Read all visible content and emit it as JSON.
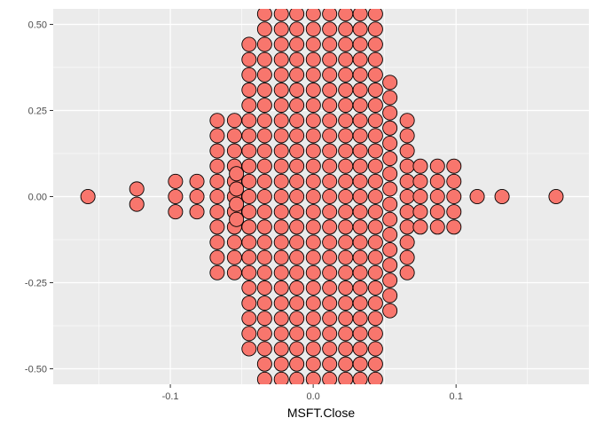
{
  "chart_data": {
    "type": "scatter",
    "subtype": "dotplot-centered",
    "xlabel": "MSFT.Close",
    "ylabel": "",
    "xlim": [
      -0.182,
      0.193
    ],
    "ylim": [
      -0.545,
      0.545
    ],
    "x_ticks": [
      -0.1,
      0.0,
      0.1
    ],
    "x_tick_labels": [
      "-0.1",
      "0.0",
      "0.1"
    ],
    "y_ticks": [
      -0.5,
      -0.25,
      0.0,
      0.25,
      0.5
    ],
    "y_tick_labels": [
      "-0.50",
      "-0.25",
      "0.00",
      "0.25",
      "0.50"
    ],
    "grid": true,
    "legend": "none",
    "dot_fill": "#F8766D",
    "dot_stroke": "#000000",
    "panel_background": "#EBEBEB",
    "bin_width": 0.0102,
    "stack_step": 0.0442,
    "stacks": [
      {
        "x": -0.1577,
        "count": 1
      },
      {
        "x": -0.1235,
        "count": 2
      },
      {
        "x": -0.0964,
        "count": 3
      },
      {
        "x": -0.0814,
        "count": 3
      },
      {
        "x": -0.0672,
        "count": 11
      },
      {
        "x": -0.0551,
        "count": 11
      },
      {
        "x": -0.0537,
        "count": 4
      },
      {
        "x": -0.0449,
        "count": 21
      },
      {
        "x": -0.034,
        "count": 25
      },
      {
        "x": -0.0223,
        "count": 25
      },
      {
        "x": -0.0115,
        "count": 25
      },
      {
        "x": 0.0001,
        "count": 25
      },
      {
        "x": 0.0115,
        "count": 25
      },
      {
        "x": 0.0227,
        "count": 25
      },
      {
        "x": 0.0329,
        "count": 25
      },
      {
        "x": 0.0436,
        "count": 25
      },
      {
        "x": 0.0537,
        "count": 16
      },
      {
        "x": 0.0658,
        "count": 11
      },
      {
        "x": 0.075,
        "count": 5
      },
      {
        "x": 0.087,
        "count": 5
      },
      {
        "x": 0.0985,
        "count": 5
      },
      {
        "x": 0.1148,
        "count": 1
      },
      {
        "x": 0.1322,
        "count": 1
      },
      {
        "x": 0.17,
        "count": 1
      }
    ]
  }
}
